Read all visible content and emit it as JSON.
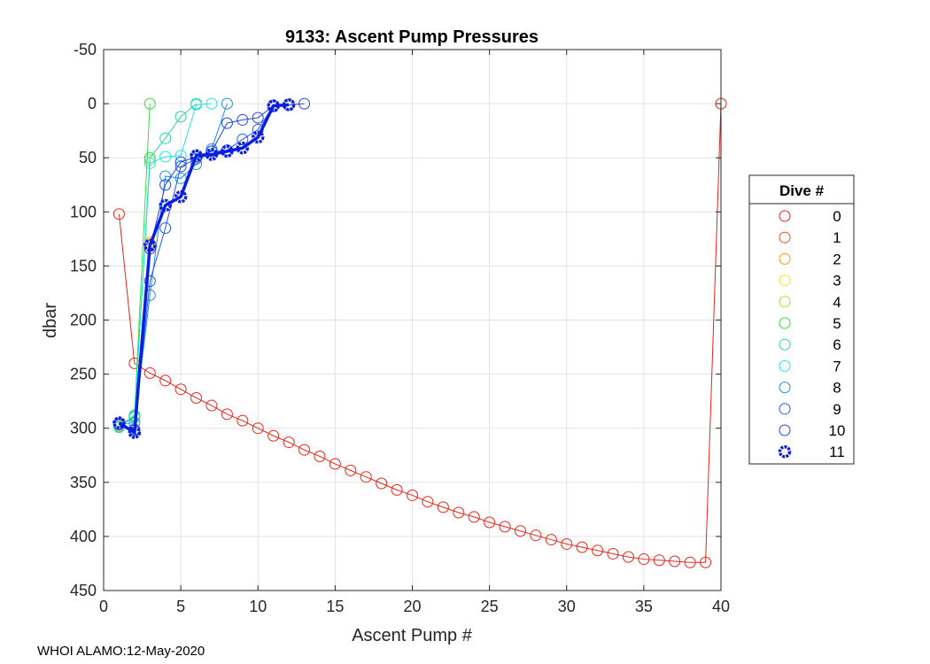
{
  "chart_data": {
    "type": "line",
    "title": "9133: Ascent Pump Pressures",
    "xlabel": "Ascent Pump #",
    "ylabel": "dbar",
    "xlim": [
      0,
      40
    ],
    "ylim": [
      -50,
      450
    ],
    "y_reversed": true,
    "xticks": [
      0,
      5,
      10,
      15,
      20,
      25,
      30,
      35,
      40
    ],
    "yticks": [
      -50,
      0,
      50,
      100,
      150,
      200,
      250,
      300,
      350,
      400,
      450
    ],
    "grid": true,
    "legend_title": "Dive #",
    "legend_position": "right",
    "series": [
      {
        "name": "0",
        "color": "#e8251b",
        "x": [
          1,
          2,
          3,
          4,
          5,
          6,
          7,
          8,
          9,
          10,
          11,
          12,
          13,
          14,
          15,
          16,
          17,
          18,
          19,
          20,
          21,
          22,
          23,
          24,
          25,
          26,
          27,
          28,
          29,
          30,
          31,
          32,
          33,
          34,
          35,
          36,
          37,
          38,
          39,
          40
        ],
        "y": [
          102,
          240,
          249,
          256,
          264,
          272,
          279,
          287,
          293,
          300,
          307,
          313,
          320,
          326,
          333,
          339,
          345,
          351,
          357,
          362,
          368,
          373,
          378,
          382,
          387,
          391,
          395,
          399,
          403,
          407,
          410,
          413,
          416,
          419,
          421,
          422,
          423,
          424,
          424,
          0
        ]
      },
      {
        "name": "1",
        "color": "#ff4a1f",
        "x": [
          1,
          2,
          3
        ],
        "y": [
          297,
          289,
          131
        ]
      },
      {
        "name": "2",
        "color": "#ff9a0a",
        "x": [
          1,
          2,
          3
        ],
        "y": [
          298,
          290,
          129
        ]
      },
      {
        "name": "3",
        "color": "#f5e51a",
        "x": [
          1,
          2,
          3
        ],
        "y": [
          298,
          290,
          128
        ]
      },
      {
        "name": "4",
        "color": "#9be51e",
        "x": [
          1,
          2,
          3
        ],
        "y": [
          299,
          289,
          52
        ]
      },
      {
        "name": "5",
        "color": "#3ddc3d",
        "x": [
          1,
          2,
          3
        ],
        "y": [
          299,
          288,
          0
        ]
      },
      {
        "name": "6",
        "color": "#23d99a",
        "x": [
          1,
          2,
          3,
          4,
          5,
          6
        ],
        "y": [
          299,
          289,
          50,
          32,
          12,
          0
        ]
      },
      {
        "name": "7",
        "color": "#22e3e3",
        "x": [
          1,
          2,
          3,
          4,
          5,
          6,
          7
        ],
        "y": [
          298,
          290,
          55,
          49,
          48,
          1,
          0
        ]
      },
      {
        "name": "8",
        "color": "#1f8ef2",
        "x": [
          1,
          2,
          3,
          4,
          5,
          6,
          7,
          8
        ],
        "y": [
          296,
          295,
          177,
          67,
          69,
          56,
          42,
          0
        ]
      },
      {
        "name": "9",
        "color": "#1e58f0",
        "x": [
          1,
          2,
          3,
          4,
          5,
          6,
          7,
          8,
          9,
          10,
          11
        ],
        "y": [
          296,
          301,
          164,
          115,
          58,
          51,
          44,
          43,
          33,
          24,
          2
        ]
      },
      {
        "name": "10",
        "color": "#2244e6",
        "x": [
          1,
          2,
          3,
          4,
          5,
          6,
          7,
          8,
          9,
          10,
          11,
          12,
          13
        ],
        "y": [
          296,
          302,
          134,
          75,
          54,
          49,
          44,
          18,
          15,
          13,
          2,
          1,
          0
        ]
      },
      {
        "name": "11",
        "color": "#0a1ee0",
        "x": [
          1,
          2,
          3,
          4,
          5,
          6,
          7,
          8,
          9,
          10,
          11,
          12
        ],
        "y": [
          295,
          304,
          131,
          94,
          86,
          48,
          47,
          44,
          41,
          31,
          2,
          1
        ],
        "bold": true
      }
    ]
  },
  "footer": "WHOI ALAMO:12-May-2020"
}
